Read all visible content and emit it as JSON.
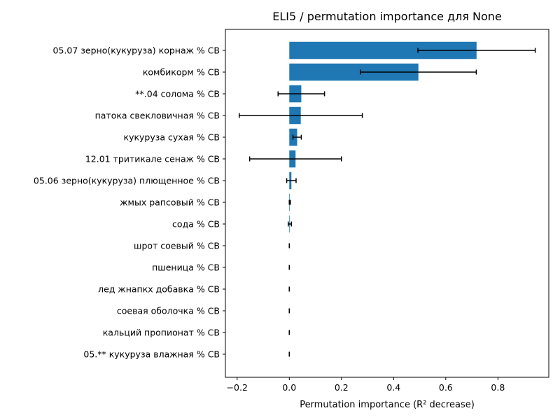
{
  "chart_data": {
    "type": "bar",
    "orientation": "horizontal",
    "title": "ELI5 / permutation importance для None",
    "xlabel": "Permutation importance (R² decrease)",
    "ylabel": "",
    "xlim": [
      -0.245,
      0.995
    ],
    "xticks": [
      -0.2,
      0.0,
      0.2,
      0.4,
      0.6,
      0.8
    ],
    "xtick_labels": [
      "−0.2",
      "0.0",
      "0.2",
      "0.4",
      "0.6",
      "0.8"
    ],
    "grid": false,
    "bar_color": "#1f77b4",
    "error_color": "#000000",
    "categories": [
      "05.07 зерно(кукуруза) корнаж % СВ",
      "комбикорм % СВ",
      "**.04 солома % СВ",
      "патока свекловичная % СВ",
      "кукуруза сухая % СВ",
      "12.01 тритикале сенаж % СВ",
      "05.06 зерно(кукуруза) плющенное % СВ",
      "жмых рапсовый % СВ",
      "сода % СВ",
      "шрот соевый % СВ",
      "пшеница % СВ",
      "лед жнапкх добавка % СВ",
      "соевая оболочка % СВ",
      "кальций пропионат % СВ",
      "05.** кукуруза влажная % СВ"
    ],
    "values": [
      0.718,
      0.495,
      0.046,
      0.044,
      0.03,
      0.024,
      0.008,
      0.002,
      0.002,
      0.0,
      0.0,
      0.0,
      0.0,
      0.0,
      0.0
    ],
    "errors": [
      0.225,
      0.222,
      0.089,
      0.236,
      0.016,
      0.176,
      0.018,
      0.002,
      0.006,
      0.0,
      0.0,
      0.0,
      0.0,
      0.0,
      0.0
    ]
  }
}
